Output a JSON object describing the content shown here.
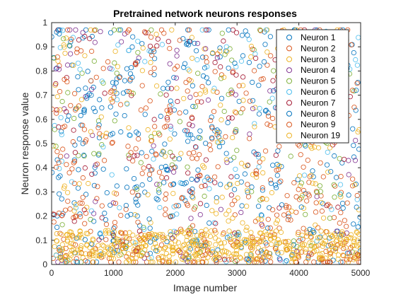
{
  "chart_data": {
    "type": "scatter",
    "title": "Pretrained network neurons responses",
    "xlabel": "Image number",
    "ylabel": "Neuron response value",
    "xlim": [
      0,
      5000
    ],
    "ylim": [
      0,
      1
    ],
    "xticks": [
      0,
      1000,
      2000,
      3000,
      4000,
      5000
    ],
    "yticks": [
      0,
      0.1,
      0.2,
      0.3,
      0.4,
      0.5,
      0.6,
      0.7,
      0.8,
      0.9,
      1
    ],
    "grid": false,
    "legend_position": "top-right",
    "marker": "open-circle",
    "series": [
      {
        "name": "Neuron 1",
        "color": "#0072BD"
      },
      {
        "name": "Neuron 2",
        "color": "#D95319"
      },
      {
        "name": "Neuron 3",
        "color": "#EDB120"
      },
      {
        "name": "Neuron 4",
        "color": "#7E2F8E"
      },
      {
        "name": "Neuron 5",
        "color": "#77AC30"
      },
      {
        "name": "Neuron 6",
        "color": "#4DBEEE"
      },
      {
        "name": "Neuron 7",
        "color": "#A2142F"
      },
      {
        "name": "Neuron 8",
        "color": "#0072BD"
      },
      {
        "name": "Neuron 9",
        "color": "#D95319"
      },
      {
        "name": "Neuron 19",
        "color": "#EDB120"
      }
    ]
  }
}
